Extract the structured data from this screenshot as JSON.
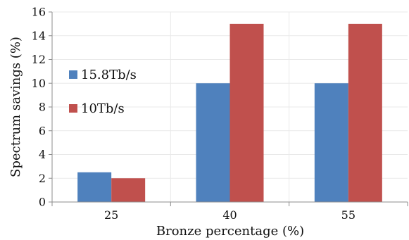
{
  "chart_data": {
    "type": "bar",
    "title": "",
    "xlabel": "Bronze percentage (%)",
    "ylabel": "Spectrum savings (%)",
    "categories": [
      "25",
      "40",
      "55"
    ],
    "ylim": [
      0,
      16
    ],
    "yticks": [
      "0",
      "2",
      "4",
      "6",
      "8",
      "10",
      "12",
      "14",
      "16"
    ],
    "grid": true,
    "legend_position": "left",
    "series": [
      {
        "name": "15.8Tb/s",
        "color": "#4f81bd",
        "values": [
          2.5,
          10,
          10
        ]
      },
      {
        "name": "10Tb/s",
        "color": "#c0504d",
        "values": [
          2,
          15,
          15
        ]
      }
    ]
  }
}
